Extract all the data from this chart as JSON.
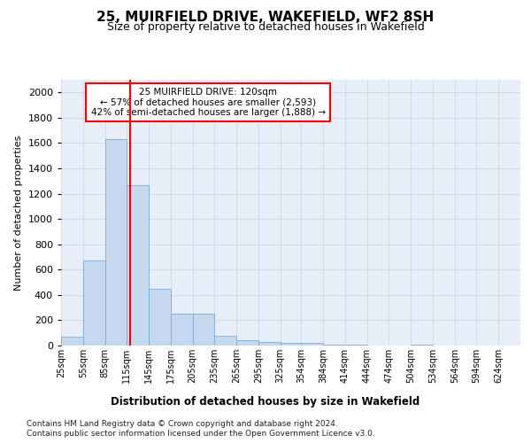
{
  "title": "25, MUIRFIELD DRIVE, WAKEFIELD, WF2 8SH",
  "subtitle": "Size of property relative to detached houses in Wakefield",
  "xlabel": "Distribution of detached houses by size in Wakefield",
  "ylabel": "Number of detached properties",
  "footnote1": "Contains HM Land Registry data © Crown copyright and database right 2024.",
  "footnote2": "Contains public sector information licensed under the Open Government Licence v3.0.",
  "annotation_line1": "25 MUIRFIELD DRIVE: 120sqm",
  "annotation_line2": "← 57% of detached houses are smaller (2,593)",
  "annotation_line3": "42% of semi-detached houses are larger (1,888) →",
  "bar_color": "#c5d8f0",
  "bar_edge_color": "#7aadd4",
  "vline_color": "red",
  "vline_x": 120,
  "categories": [
    "25sqm",
    "55sqm",
    "85sqm",
    "115sqm",
    "145sqm",
    "175sqm",
    "205sqm",
    "235sqm",
    "265sqm",
    "295sqm",
    "325sqm",
    "354sqm",
    "384sqm",
    "414sqm",
    "444sqm",
    "474sqm",
    "504sqm",
    "534sqm",
    "564sqm",
    "594sqm",
    "624sqm"
  ],
  "bin_starts": [
    25,
    55,
    85,
    115,
    145,
    175,
    205,
    235,
    265,
    295,
    325,
    354,
    384,
    414,
    444,
    474,
    504,
    534,
    564,
    594,
    624
  ],
  "bin_width": 30,
  "values": [
    70,
    670,
    1630,
    1270,
    450,
    255,
    255,
    80,
    45,
    30,
    22,
    18,
    10,
    10,
    0,
    0,
    8,
    0,
    0,
    0,
    0
  ],
  "ylim": [
    0,
    2100
  ],
  "yticks": [
    0,
    200,
    400,
    600,
    800,
    1000,
    1200,
    1400,
    1600,
    1800,
    2000
  ],
  "grid_color": "#c8d0e8",
  "background_color": "#e8eef8",
  "fig_background": "#ffffff"
}
